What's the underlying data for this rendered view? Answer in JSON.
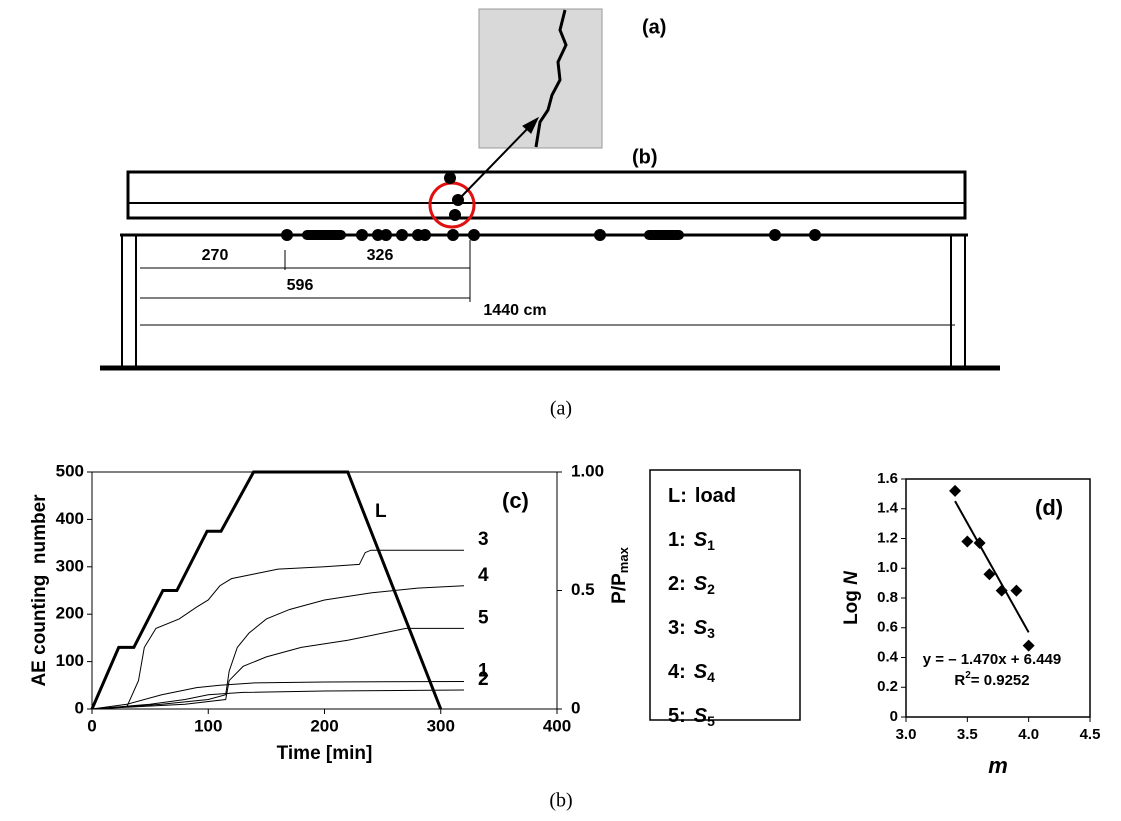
{
  "figure_a": {
    "inset_label": "(a)",
    "beam_label": "(b)",
    "dimensions": [
      270,
      326,
      596,
      "1440 cm"
    ],
    "caption": "(a)"
  },
  "chart_data": [
    {
      "type": "line",
      "annotation": "(c)",
      "xlabel": "Time [min]",
      "ylabel": "AE counting  number",
      "y2label": "P/P",
      "y2label_sub": "max",
      "xlim": [
        0,
        400
      ],
      "xticks": [
        0,
        100,
        200,
        300,
        400
      ],
      "ylim": [
        0,
        500
      ],
      "yticks": [
        0,
        100,
        200,
        300,
        400,
        500
      ],
      "y2lim": [
        0,
        1
      ],
      "y2ticks": [
        0,
        0.5,
        {
          "value": 1,
          "label": "1.00"
        }
      ],
      "series": [
        {
          "name": "load",
          "key": "L:",
          "label": "L",
          "axis": "y2",
          "color": "#000000",
          "line_width": 3,
          "x": [
            0,
            23,
            36,
            61,
            73,
            99,
            111,
            139,
            220,
            300
          ],
          "values": [
            0,
            0.26,
            0.26,
            0.5,
            0.5,
            0.75,
            0.75,
            1,
            1,
            0
          ]
        },
        {
          "name": "S",
          "sub": "1",
          "key": "1:",
          "label": "1",
          "color": "#000000",
          "line_width": 1,
          "x": [
            0,
            30,
            60,
            90,
            110,
            140,
            200,
            320
          ],
          "values": [
            0,
            10,
            30,
            45,
            50,
            55,
            57,
            58
          ]
        },
        {
          "name": "S",
          "sub": "2",
          "key": "2:",
          "label": "2",
          "color": "#000000",
          "line_width": 1,
          "x": [
            0,
            50,
            80,
            100,
            130,
            200,
            320
          ],
          "values": [
            0,
            10,
            20,
            30,
            35,
            38,
            40
          ]
        },
        {
          "name": "S",
          "sub": "3",
          "key": "3:",
          "label": "3",
          "color": "#000000",
          "line_width": 1,
          "x": [
            0,
            30,
            40,
            45,
            55,
            75,
            90,
            100,
            110,
            120,
            140,
            160,
            200,
            230,
            235,
            240,
            320
          ],
          "values": [
            0,
            5,
            60,
            130,
            170,
            190,
            215,
            230,
            260,
            275,
            285,
            295,
            300,
            305,
            330,
            335,
            335
          ]
        },
        {
          "name": "S",
          "sub": "4",
          "key": "4:",
          "label": "4",
          "color": "#000000",
          "line_width": 1,
          "x": [
            0,
            60,
            100,
            115,
            118,
            125,
            135,
            150,
            170,
            200,
            240,
            280,
            320
          ],
          "values": [
            0,
            10,
            20,
            30,
            80,
            130,
            160,
            190,
            210,
            230,
            245,
            255,
            260
          ]
        },
        {
          "name": "S",
          "sub": "5",
          "key": "5:",
          "label": "5",
          "color": "#000000",
          "line_width": 1,
          "x": [
            0,
            80,
            115,
            118,
            130,
            150,
            180,
            220,
            250,
            270,
            320
          ],
          "values": [
            0,
            10,
            20,
            60,
            90,
            110,
            130,
            145,
            160,
            170,
            170
          ]
        }
      ]
    },
    {
      "type": "scatter",
      "annotation": "(d)",
      "xlabel": "m",
      "ylabel": "Log ",
      "ylabel_italic": "N",
      "xlim": [
        3,
        4.5
      ],
      "xticks": [
        {
          "value": 3,
          "label": "3.0"
        },
        3.5,
        {
          "value": 4,
          "label": "4.0"
        },
        4.5
      ],
      "ylim": [
        0,
        1.6
      ],
      "yticks": [
        0,
        0.2,
        0.4,
        0.6,
        0.8,
        {
          "value": 1,
          "label": "1.0"
        },
        1.2,
        1.4,
        1.6
      ],
      "x": [
        3.4,
        3.5,
        3.6,
        3.68,
        3.78,
        3.9,
        4.0
      ],
      "values": [
        1.52,
        1.18,
        1.17,
        0.96,
        0.85,
        0.85,
        0.48
      ],
      "color": "#000000",
      "fit": {
        "slope": -1.47,
        "intercept": 6.449,
        "equation": "y = – 1.470x + 6.449",
        "r2_prefix": "R",
        "r2_sup": "2",
        "r2_value": "= 0.9252"
      }
    }
  ],
  "caption": "(b)"
}
